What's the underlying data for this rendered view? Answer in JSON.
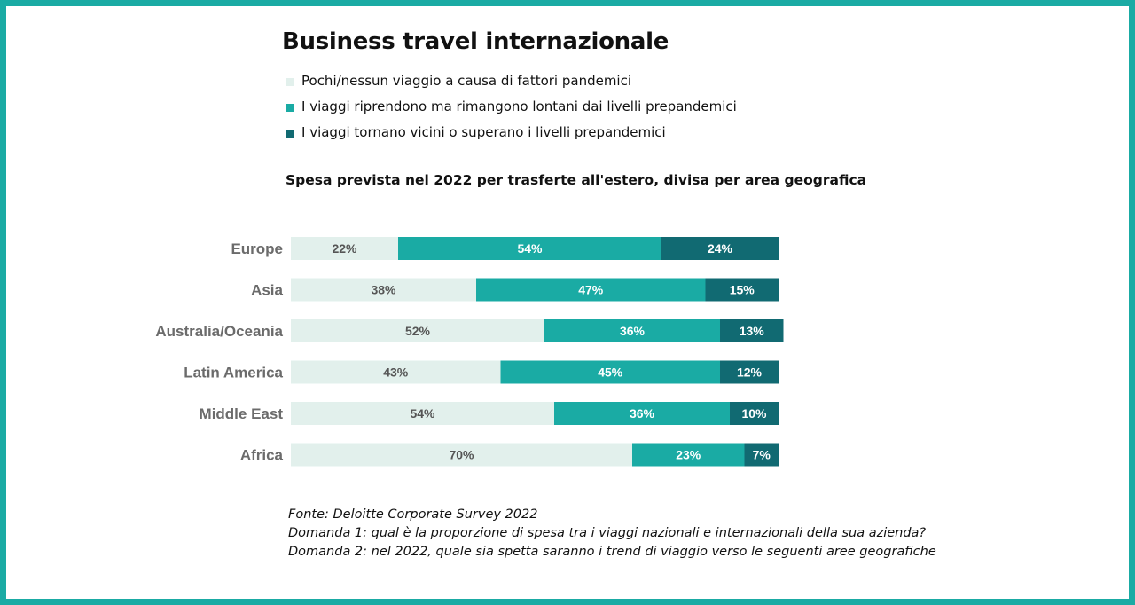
{
  "title": "Business travel internazionale",
  "legend": [
    {
      "label": "Pochi/nessun viaggio a causa di fattori pandemici",
      "color": "#e2f0ec"
    },
    {
      "label": "I viaggi riprendono ma rimangono lontani dai livelli prepandemici",
      "color": "#1aaba4"
    },
    {
      "label": "I viaggi tornano vicini o superano i livelli prepandemici",
      "color": "#116a72"
    }
  ],
  "subtitle": "Spesa prevista nel 2022 per trasferte all'estero, divisa per area geografica",
  "chart_data": {
    "type": "bar",
    "orientation": "horizontal",
    "stacked": true,
    "categories": [
      "Europe",
      "Asia",
      "Australia/Oceania",
      "Latin America",
      "Middle East",
      "Africa"
    ],
    "series": [
      {
        "name": "Pochi/nessun viaggio a causa di fattori pandemici",
        "values": [
          22,
          38,
          52,
          43,
          54,
          70
        ],
        "color": "#e2f0ec",
        "label_color": "#555555"
      },
      {
        "name": "I viaggi riprendono ma rimangono lontani dai livelli prepandemici",
        "values": [
          54,
          47,
          36,
          45,
          36,
          23
        ],
        "color": "#1aaba4",
        "label_color": "#ffffff"
      },
      {
        "name": "I viaggi tornano vicini o superano i livelli prepandemici",
        "values": [
          24,
          15,
          13,
          12,
          10,
          7
        ],
        "color": "#116a72",
        "label_color": "#ffffff"
      }
    ],
    "value_suffix": "%",
    "xlim": [
      0,
      100
    ],
    "grid": false,
    "legend_position": "top-left"
  },
  "notes": [
    "Fonte: Deloitte Corporate Survey 2022",
    "Domanda 1: qual è la proporzione di spesa tra i viaggi nazionali e internazionali della sua azienda?",
    "Domanda 2: nel 2022, quale sia spetta saranno i trend di viaggio verso le seguenti aree geografiche"
  ]
}
